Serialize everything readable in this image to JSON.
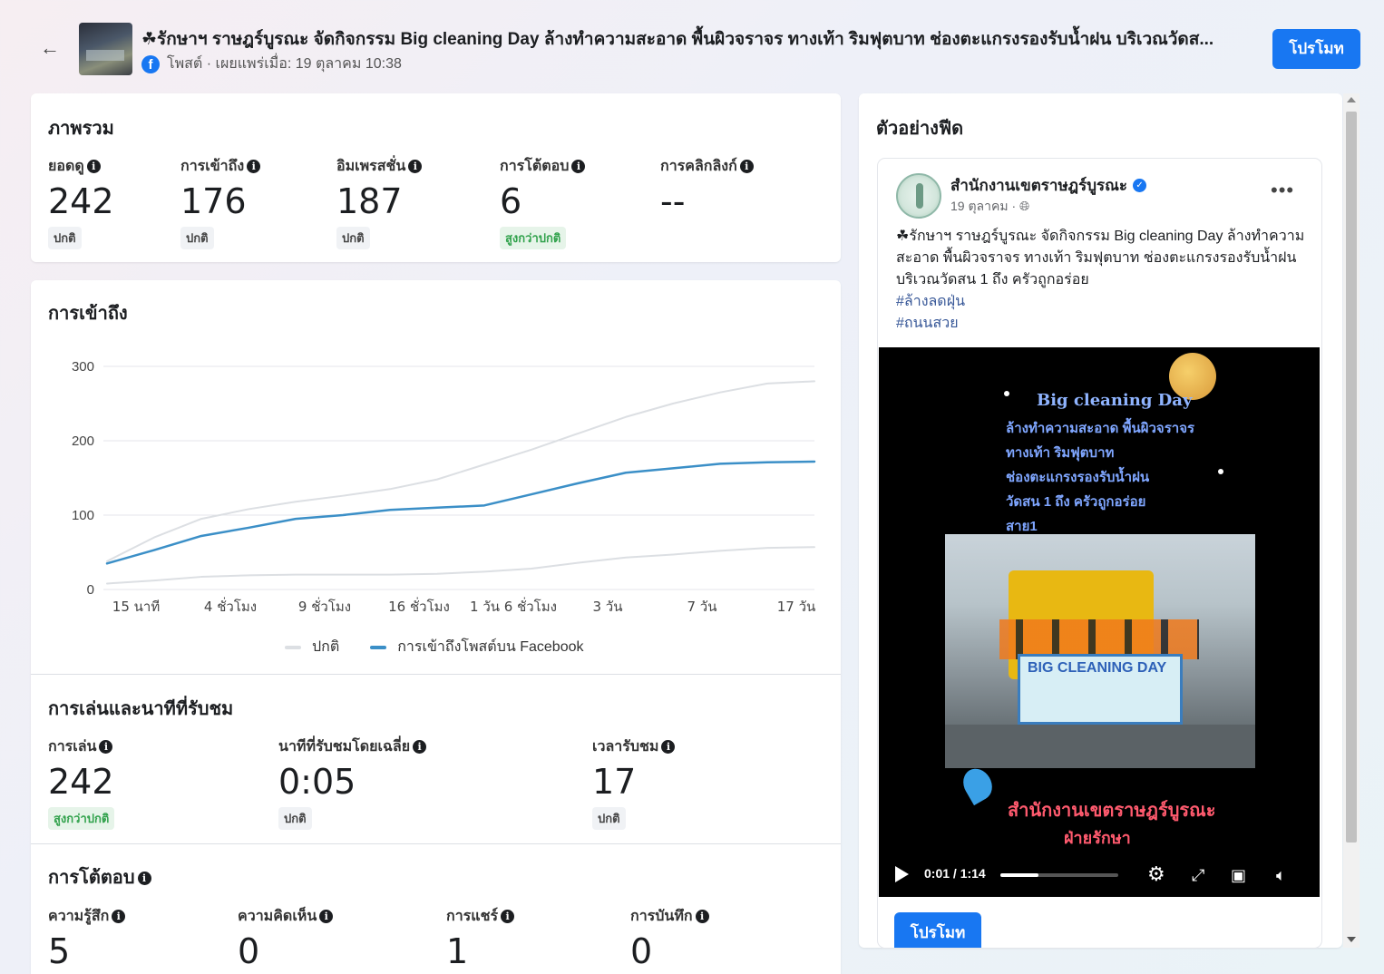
{
  "header": {
    "title": "☘รักษาฯ ราษฎร์บูรณะ จัดกิจกรรม Big cleaning Day ล้างทำความสะอาด พื้นผิวจราจร ทางเท้า ริมฟุตบาท ช่องตะแกรงรองรับน้ำฝน บริเวณวัดส...",
    "meta": "โพสต์ · เผยแพร่เมื่อ: 19 ตุลาคม 10:38",
    "promote_label": "โปรโมท"
  },
  "overview": {
    "title": "ภาพรวม",
    "metrics": [
      {
        "label": "ยอดดู",
        "value": "242",
        "badge": "ปกติ",
        "highlight": false
      },
      {
        "label": "การเข้าถึง",
        "value": "176",
        "badge": "ปกติ",
        "highlight": false
      },
      {
        "label": "อิมเพรสชั่น",
        "value": "187",
        "badge": "ปกติ",
        "highlight": false
      },
      {
        "label": "การโต้ตอบ",
        "value": "6",
        "badge": "สูงกว่าปกติ",
        "highlight": true
      },
      {
        "label": "การคลิกลิงก์",
        "value": "--",
        "badge": "",
        "highlight": false
      }
    ]
  },
  "reach": {
    "title": "การเข้าถึง",
    "legend_normal": "ปกติ",
    "legend_post": "การเข้าถึงโพสต์บน Facebook"
  },
  "chart_data": {
    "type": "line",
    "title": "การเข้าถึง",
    "x_ticks": [
      "15 นาที",
      "4 ชั่วโมง",
      "9 ชั่วโมง",
      "16 ชั่วโมง",
      "1 วัน 6 ชั่วโมง",
      "3 วัน",
      "7 วัน",
      "17 วัน"
    ],
    "y_ticks": [
      0,
      100,
      200,
      300
    ],
    "ylim": [
      0,
      300
    ],
    "xlim": [
      0,
      7.5
    ],
    "x": [
      0,
      0.5,
      1,
      1.5,
      2,
      2.5,
      3,
      3.5,
      4,
      4.5,
      5,
      5.5,
      6,
      6.5,
      7,
      7.5
    ],
    "series": [
      {
        "name": "ปกติ",
        "role": "band-upper",
        "color": "#dcdfe3",
        "values": [
          38,
          70,
          95,
          108,
          118,
          126,
          135,
          148,
          168,
          188,
          210,
          232,
          250,
          265,
          277,
          280
        ]
      },
      {
        "name": "ปกติ",
        "role": "band-lower",
        "color": "#dcdfe3",
        "values": [
          8,
          12,
          17,
          19,
          20,
          20,
          20,
          21,
          24,
          28,
          36,
          43,
          47,
          52,
          56,
          57
        ]
      },
      {
        "name": "การเข้าถึงโพสต์บน Facebook",
        "color": "#3b8fc7",
        "values": [
          35,
          53,
          72,
          83,
          95,
          100,
          107,
          110,
          113,
          128,
          143,
          157,
          163,
          169,
          171,
          172
        ]
      }
    ],
    "legend_position": "bottom",
    "grid": true
  },
  "plays": {
    "title": "การเล่นและนาทีที่รับชม",
    "metrics": [
      {
        "label": "การเล่น",
        "value": "242",
        "badge": "สูงกว่าปกติ",
        "highlight": true
      },
      {
        "label": "นาทีที่รับชมโดยเฉลี่ย",
        "value": "0:05",
        "badge": "ปกติ",
        "highlight": false
      },
      {
        "label": "เวลารับชม",
        "value": "17",
        "badge": "ปกติ",
        "highlight": false
      }
    ]
  },
  "interactions": {
    "title": "การโต้ตอบ",
    "metrics": [
      {
        "label": "ความรู้สึก",
        "value": "5"
      },
      {
        "label": "ความคิดเห็น",
        "value": "0"
      },
      {
        "label": "การแชร์",
        "value": "1"
      },
      {
        "label": "การบันทึก",
        "value": "0"
      }
    ]
  },
  "feed_preview": {
    "title": "ตัวอย่างฟีด",
    "page_name": "สำนักงานเขตราษฎร์บูรณะ",
    "date": "19 ตุลาคม ·",
    "post_text": "☘รักษาฯ ราษฎร์บูรณะ จัดกิจกรรม Big cleaning Day ล้างทำความสะอาด พื้นผิวจราจร ทางเท้า ริมฟุตบาท ช่องตะแกรงรองรับน้ำฝน บริเวณวัดสน 1 ถึง ครัวถูกอร่อย",
    "hashtags": [
      "#ล้างลดฝุ่น",
      "#ถนนสวย"
    ],
    "video": {
      "heading": "Big cleaning Day",
      "lines": [
        "ล้างทำความสะอาด พื้นผิวจราจร",
        "ทางเท้า ริมฟุตบาท",
        "ช่องตะแกรงรองรับน้ำฝน",
        "วัดสน 1 ถึง ครัวถูกอร่อย",
        "สาย1"
      ],
      "banner": "BIG CLEANING DAY",
      "footer1": "สำนักงานเขตราษฎร์บูรณะ",
      "footer2": "ฝ่ายรักษา",
      "time": "0:01 / 1:14",
      "progress": 0.32
    },
    "promote_label": "โปรโมท"
  }
}
